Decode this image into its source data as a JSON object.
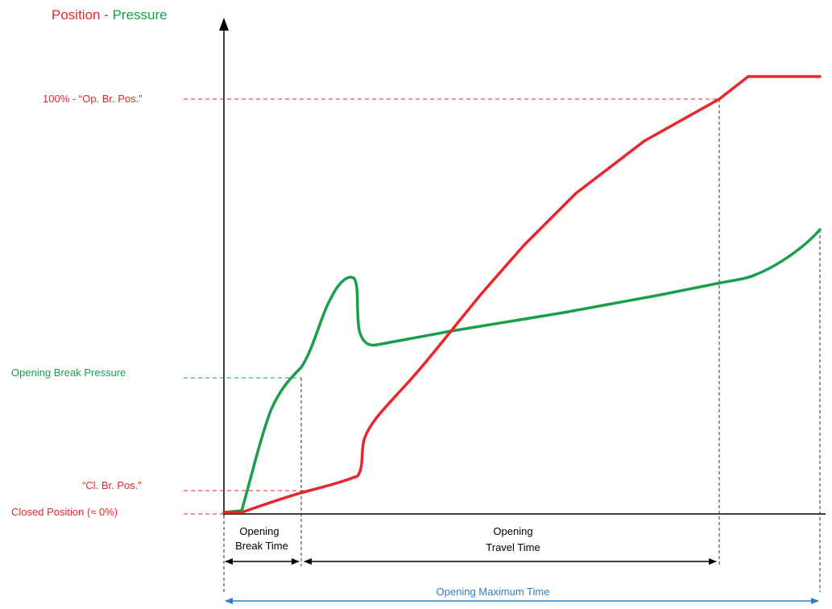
{
  "title": {
    "position": "Position",
    "separator": " - ",
    "pressure": "Pressure"
  },
  "levels": {
    "open_break_pos": "100% - “Op. Br. Pos.”",
    "opening_break_pressure": "Opening Break Pressure",
    "closed_break_pos": "“Cl. Br. Pos.”",
    "closed_position": "Closed Position (≈ 0%)"
  },
  "intervals": {
    "opening_break_time": [
      "Opening",
      "Break Time"
    ],
    "opening_travel_time": [
      "Opening",
      "Travel Time"
    ],
    "opening_maximum_time": "Opening Maximum Time"
  },
  "colors": {
    "position": "#e8262b",
    "pressure": "#1a9e4b",
    "time_arrow": "#2f7ec1",
    "guide": "#333333",
    "axis": "#000000"
  }
}
